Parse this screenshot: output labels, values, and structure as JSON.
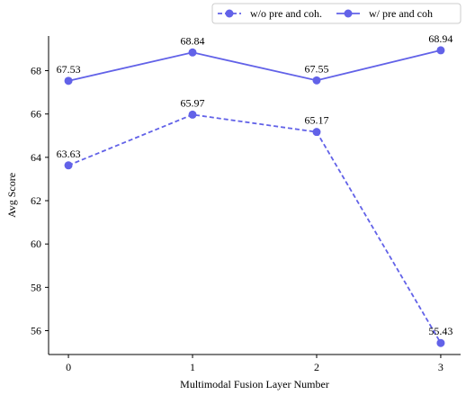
{
  "chart_data": {
    "type": "line",
    "title": "",
    "xlabel": "Multimodal Fusion Layer Number",
    "ylabel": "Avg Score",
    "x": [
      0,
      1,
      2,
      3
    ],
    "xticks": [
      "0",
      "1",
      "2",
      "3"
    ],
    "yticks": [
      "56",
      "58",
      "60",
      "62",
      "64",
      "66",
      "68"
    ],
    "xlim": [
      -0.16,
      3.16
    ],
    "ylim": [
      54.9,
      69.6
    ],
    "grid": false,
    "legend_placement": "top-right, above plot, horizontal",
    "series": [
      {
        "name": "w/o pre and coh.",
        "values": [
          63.63,
          65.97,
          65.17,
          55.43
        ],
        "labels": [
          "63.63",
          "65.97",
          "65.17",
          "55.43"
        ],
        "line_style": "dashed",
        "color": "#6262e8"
      },
      {
        "name": "w/ pre and coh",
        "values": [
          67.53,
          68.84,
          67.55,
          68.94
        ],
        "labels": [
          "67.53",
          "68.84",
          "67.55",
          "68.94"
        ],
        "line_style": "solid",
        "color": "#6262e8"
      }
    ]
  }
}
